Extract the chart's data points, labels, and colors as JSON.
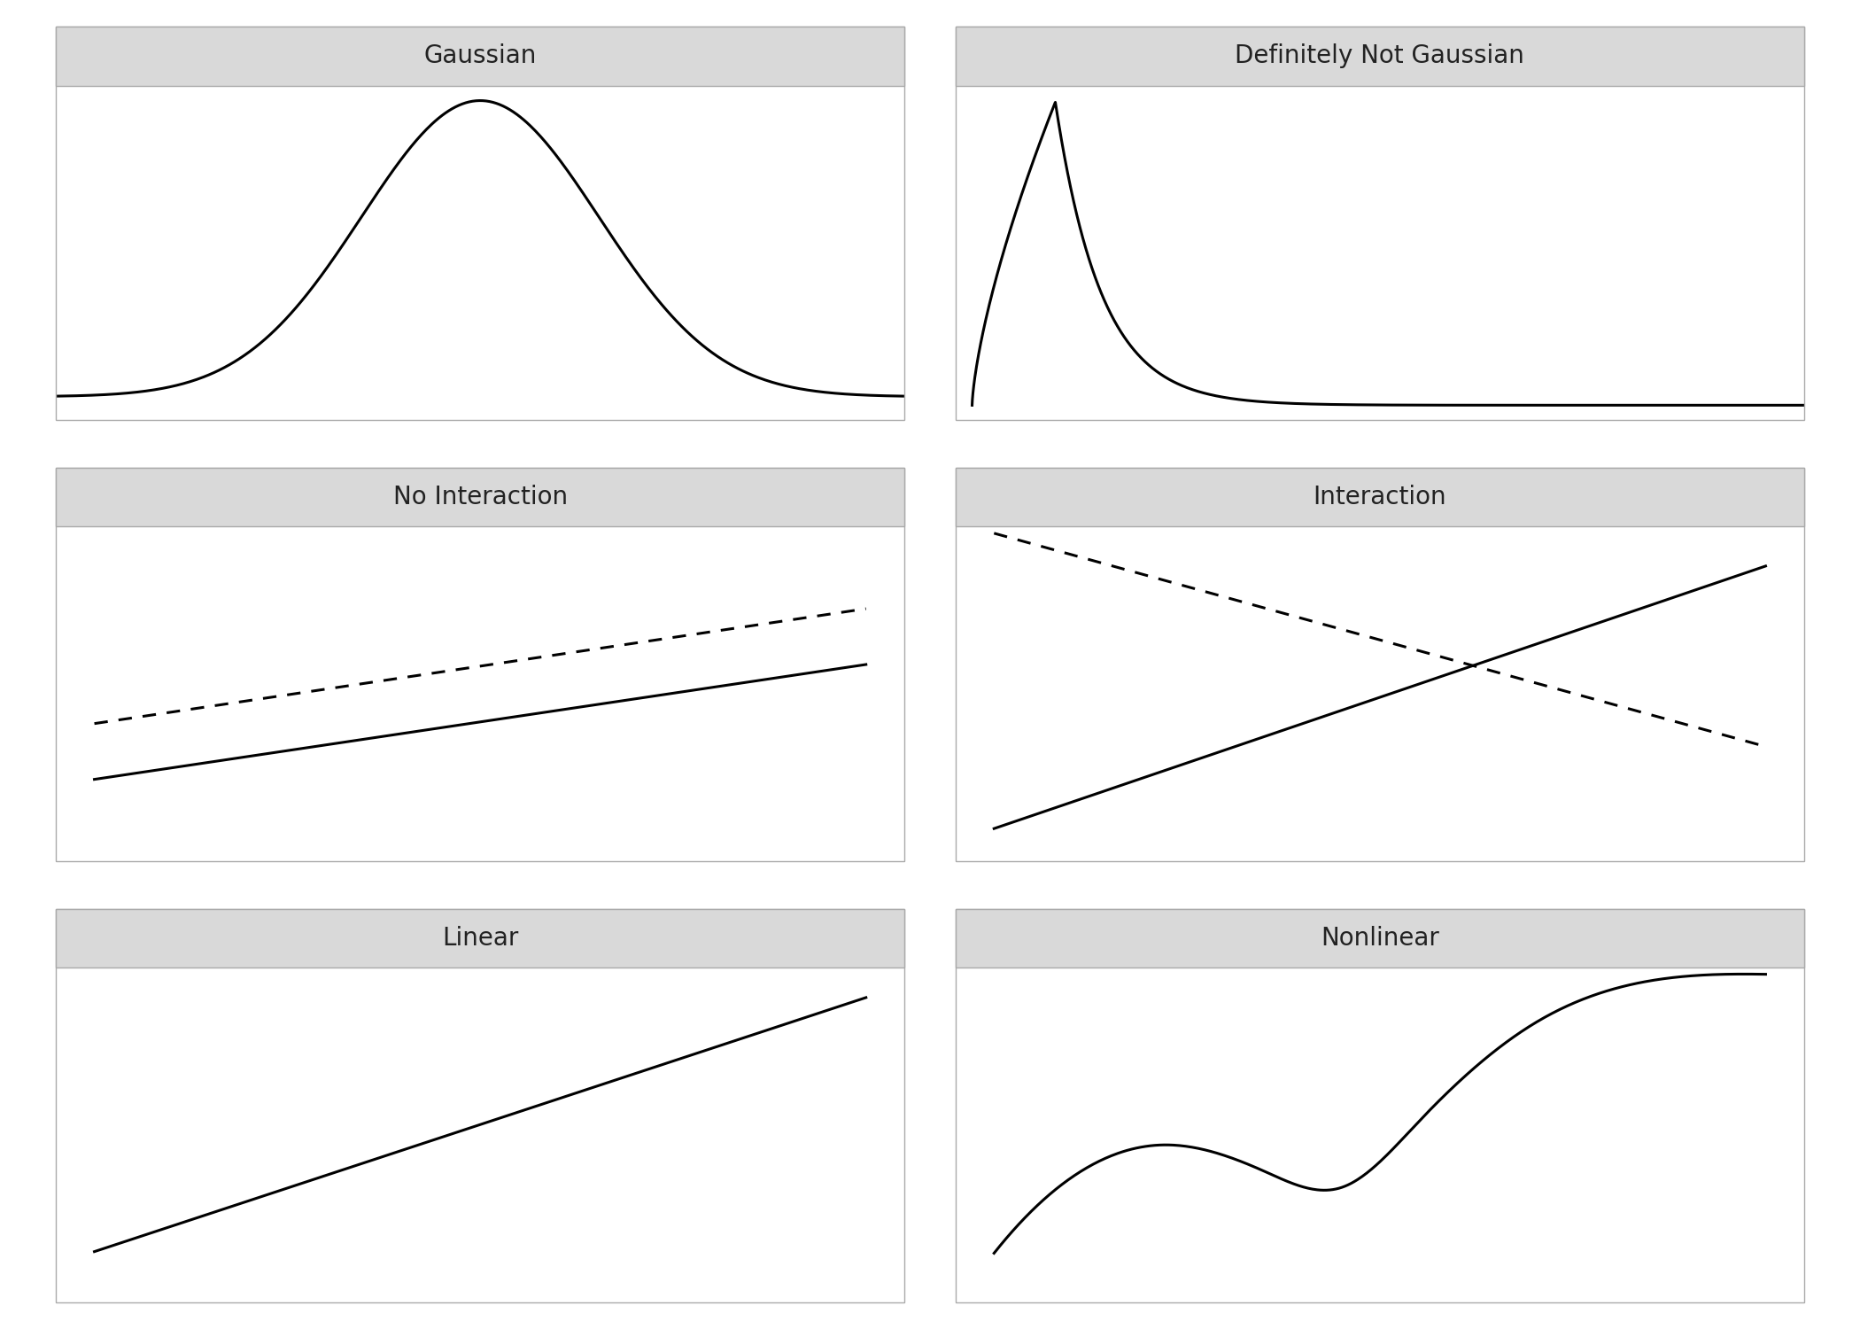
{
  "titles": [
    "Gaussian",
    "Definitely Not Gaussian",
    "No Interaction",
    "Interaction",
    "Linear",
    "Nonlinear"
  ],
  "title_bg_color": "#d9d9d9",
  "title_fontsize": 20,
  "line_color": "#000000",
  "line_width": 2.2,
  "background_color": "#ffffff",
  "border_color": "#aaaaaa",
  "fig_bg_color": "#ffffff"
}
